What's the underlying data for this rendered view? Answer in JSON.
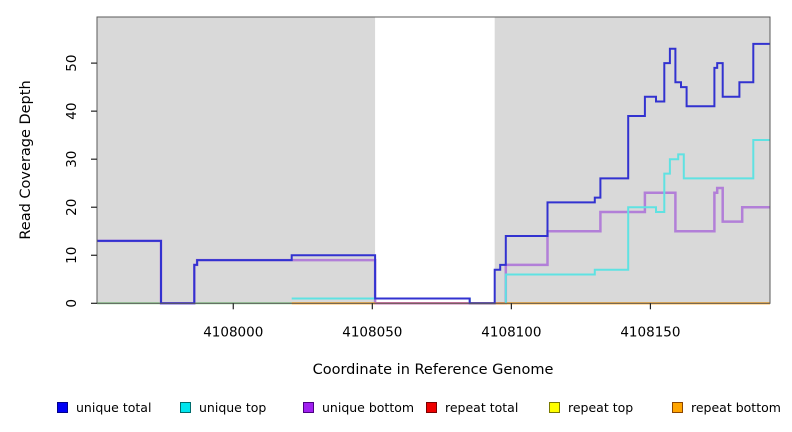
{
  "chart_data": {
    "type": "line",
    "style": "step-coverage-plot",
    "title": "",
    "xlabel": "Coordinate in Reference Genome",
    "ylabel": "Read Coverage Depth",
    "xlim": [
      4107951,
      4108193
    ],
    "ylim": [
      0,
      59.6
    ],
    "x_ticks": [
      4108000,
      4108050,
      4108100,
      4108150
    ],
    "y_ticks": [
      0,
      10,
      20,
      30,
      40,
      50
    ],
    "grid": "off",
    "legend_position": "bottom",
    "panel_bg": "#d9d9d9",
    "gap_band": {
      "from": 4108051,
      "to": 4108094,
      "color": "#ffffff"
    },
    "series": [
      {
        "name": "repeat top",
        "key": "repeat-top",
        "line_color": "#8fd48f",
        "width": 2,
        "segments": [
          [
            [
              4107951,
              0
            ],
            [
              4108021,
              0
            ]
          ]
        ]
      },
      {
        "name": "unique bottom",
        "key": "unique-bottom",
        "line_color": "#b27fd8",
        "width": 2.5,
        "segments": [
          [
            [
              4107951,
              13
            ],
            [
              4107974,
              0
            ],
            [
              4107986,
              8
            ],
            [
              4107987,
              9
            ],
            [
              4108021,
              9
            ],
            [
              4108051,
              0
            ],
            [
              4108098,
              8
            ],
            [
              4108113,
              15
            ],
            [
              4108132,
              19
            ],
            [
              4108148,
              23
            ],
            [
              4108159,
              15
            ],
            [
              4108173,
              23
            ],
            [
              4108174,
              24
            ],
            [
              4108176,
              17
            ],
            [
              4108183,
              20
            ],
            [
              4108193,
              20
            ]
          ]
        ]
      },
      {
        "name": "repeat total",
        "key": "repeat-total",
        "line_color": "#e57490",
        "width": 2,
        "segments": [
          [
            [
              4108051,
              0
            ],
            [
              4108085,
              0
            ]
          ]
        ]
      },
      {
        "name": "repeat bottom",
        "key": "repeat-bottom",
        "line_color": "#ffa51e",
        "width": 2.2,
        "segments": [
          [
            [
              4108021,
              0
            ],
            [
              4108051,
              0
            ]
          ],
          [
            [
              4108085,
              0
            ],
            [
              4108193,
              0
            ]
          ]
        ]
      },
      {
        "name": "unique top",
        "key": "unique-top",
        "line_color": "#5fe2e2",
        "width": 2,
        "segments": [
          [
            [
              4108021,
              1
            ],
            [
              4108085,
              0
            ]
          ],
          [
            [
              4108098,
              0
            ],
            [
              4108098,
              6
            ],
            [
              4108130,
              7
            ],
            [
              4108142,
              20
            ],
            [
              4108152,
              19
            ],
            [
              4108155,
              27
            ],
            [
              4108157,
              30
            ],
            [
              4108160,
              31
            ],
            [
              4108162,
              26
            ],
            [
              4108187,
              34
            ],
            [
              4108193,
              34
            ]
          ]
        ]
      },
      {
        "name": "unique total",
        "key": "unique-total",
        "line_color": "#3232d0",
        "width": 2,
        "segments": [
          [
            [
              4107951,
              13
            ],
            [
              4107974,
              0
            ],
            [
              4107986,
              8
            ],
            [
              4107987,
              9
            ],
            [
              4108021,
              10
            ],
            [
              4108051,
              1
            ],
            [
              4108085,
              0
            ],
            [
              4108094,
              7
            ],
            [
              4108096,
              8
            ],
            [
              4108098,
              14
            ],
            [
              4108113,
              21
            ],
            [
              4108130,
              22
            ],
            [
              4108132,
              26
            ],
            [
              4108142,
              39
            ],
            [
              4108148,
              43
            ],
            [
              4108152,
              42
            ],
            [
              4108155,
              50
            ],
            [
              4108157,
              53
            ],
            [
              4108159,
              46
            ],
            [
              4108161,
              45
            ],
            [
              4108163,
              41
            ],
            [
              4108173,
              49
            ],
            [
              4108174,
              50
            ],
            [
              4108176,
              43
            ],
            [
              4108182,
              46
            ],
            [
              4108187,
              54
            ],
            [
              4108193,
              54
            ]
          ]
        ]
      }
    ],
    "legend": [
      {
        "label": "unique total",
        "swatch": "#0000f5",
        "border": "#00008b"
      },
      {
        "label": "unique top",
        "swatch": "#00e5ee",
        "border": "#006b6b"
      },
      {
        "label": "unique bottom",
        "swatch": "#a020f0",
        "border": "#4b0082"
      },
      {
        "label": "repeat total",
        "swatch": "#ee0000",
        "border": "#7a0000"
      },
      {
        "label": "repeat top",
        "swatch": "#ffff00",
        "border": "#7a7a00"
      },
      {
        "label": "repeat bottom",
        "swatch": "#ffa500",
        "border": "#8b4500"
      }
    ]
  }
}
